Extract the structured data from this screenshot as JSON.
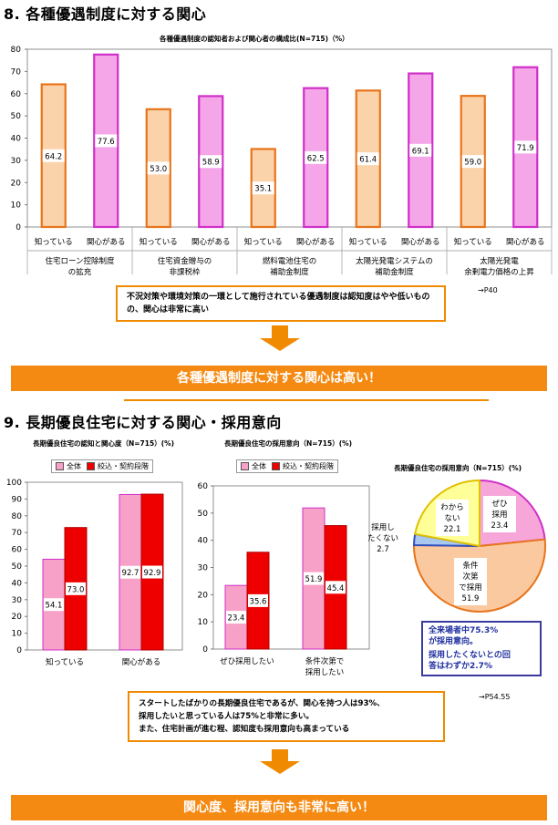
{
  "section8": {
    "title": "8. 各種優遇制度に対する関心",
    "chart_title": "各種優遇制度の認知者および関心者の構成比(N=715)（%）",
    "note": "不況対策や環境対策の一環として施行されている優遇制度は認知度はやや低いものの、関心は非常に高い",
    "ref": "→P40",
    "banner": "各種優遇制度に対する関心は高い！"
  },
  "section9": {
    "title": "9. 長期優良住宅に対する関心・採用意向",
    "chart1_title": "長期優良住宅の認知と関心度（N=715）(%)",
    "chart2_title": "長期優良住宅の採用意向（N=715）(%)",
    "chart3_title": "長期優良住宅の採用意向（N=715）(%)",
    "legend": {
      "all": "全体",
      "narrowed": "絞込・契約段階"
    },
    "callout": [
      "全来場者中75.3%",
      "が採用意向。",
      "採用したくないとの回",
      "答はわずか2.7%"
    ],
    "note": [
      "スタートしたばかりの長期優良住宅であるが、関心を持つ人は93%、",
      "採用したいと思っている人は75%と非常に多い。",
      "また、住宅計画が進む程、認知度も採用意向も高まっている"
    ],
    "ref": "→P54.55",
    "banner": "関心度、採用意向も非常に高い！"
  },
  "colors": {
    "orange_bar": "#fbd3ab",
    "orange_edge": "#e8741a",
    "pink_bar": "#f4a6e8",
    "pink_edge": "#d030c8",
    "red_bar": "#ee0000",
    "light_pink_bar": "#f7a0c8",
    "pie_pink": "#f7a6da",
    "pie_orange": "#fbc9a0",
    "pie_yellow": "#ffff99",
    "pie_blue": "#a8c8f0",
    "accent": "#f58a12"
  },
  "chart_data": [
    {
      "type": "bar",
      "title": "各種優遇制度の認知者および関心者の構成比(N=715)（%）",
      "ylim": [
        0,
        80
      ],
      "yticks": [
        0,
        10,
        20,
        30,
        40,
        50,
        60,
        70,
        80
      ],
      "groups": [
        {
          "label": [
            "住宅ローン控除制度",
            "の拡充"
          ],
          "bars": [
            {
              "label": "知っている",
              "value": 64.2
            },
            {
              "label": "関心がある",
              "value": 77.6
            }
          ]
        },
        {
          "label": [
            "住宅資金贈与の",
            "非課税枠"
          ],
          "bars": [
            {
              "label": "知っている",
              "value": 53.0
            },
            {
              "label": "関心がある",
              "value": 58.9
            }
          ]
        },
        {
          "label": [
            "燃料電池住宅の",
            "補助金制度"
          ],
          "bars": [
            {
              "label": "知っている",
              "value": 35.1
            },
            {
              "label": "関心がある",
              "value": 62.5
            }
          ]
        },
        {
          "label": [
            "太陽光発電システムの",
            "補助金制度"
          ],
          "bars": [
            {
              "label": "知っている",
              "value": 61.4
            },
            {
              "label": "関心がある",
              "value": 69.1
            }
          ]
        },
        {
          "label": [
            "太陽光発電",
            "余剰電力価格の上昇"
          ],
          "bars": [
            {
              "label": "知っている",
              "value": 59.0
            },
            {
              "label": "関心がある",
              "value": 71.9
            }
          ]
        }
      ]
    },
    {
      "type": "bar",
      "title": "長期優良住宅の認知と関心度（N=715）(%)",
      "ylim": [
        0,
        100
      ],
      "yticks": [
        0,
        10,
        20,
        30,
        40,
        50,
        60,
        70,
        80,
        90,
        100
      ],
      "categories": [
        "知っている",
        "関心がある"
      ],
      "series": [
        {
          "name": "全体",
          "values": [
            54.1,
            92.7
          ]
        },
        {
          "name": "絞込・契約段階",
          "values": [
            73.0,
            92.9
          ]
        }
      ]
    },
    {
      "type": "bar",
      "title": "長期優良住宅の採用意向（N=715）(%)",
      "ylim": [
        0,
        60
      ],
      "yticks": [
        0,
        10,
        20,
        30,
        40,
        50,
        60
      ],
      "categories": [
        [
          "ぜひ採用したい"
        ],
        [
          "条件次第で",
          "採用したい"
        ]
      ],
      "series": [
        {
          "name": "全体",
          "values": [
            23.4,
            51.9
          ]
        },
        {
          "name": "絞込・契約段階",
          "values": [
            35.6,
            45.4
          ]
        }
      ]
    },
    {
      "type": "pie",
      "title": "長期優良住宅の採用意向（N=715）(%)",
      "slices": [
        {
          "label": [
            "ぜひ",
            "採用"
          ],
          "value": 23.4
        },
        {
          "label": [
            "条件",
            "次第",
            "で採用"
          ],
          "value": 51.9
        },
        {
          "label": [
            "採用し",
            "たくない"
          ],
          "value": 2.7
        },
        {
          "label": [
            "わから",
            "ない"
          ],
          "value": 22.1
        }
      ]
    }
  ]
}
